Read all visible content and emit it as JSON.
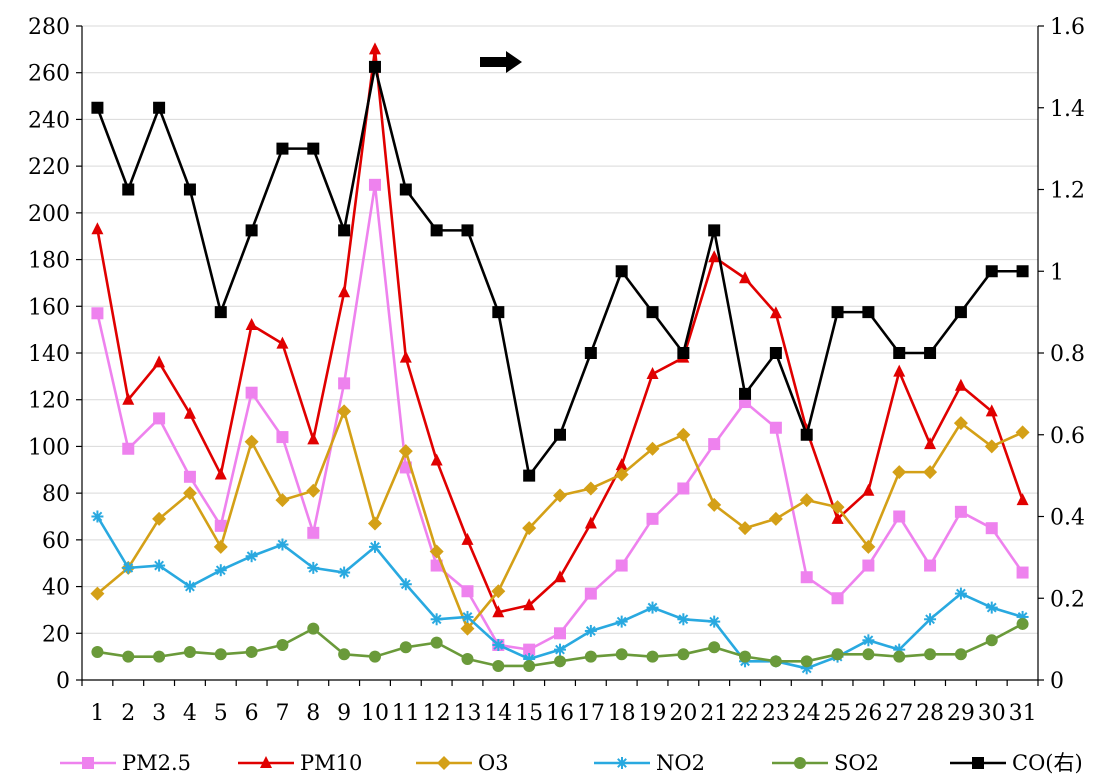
{
  "chart_data": {
    "type": "line",
    "x": [
      "1",
      "2",
      "3",
      "4",
      "5",
      "6",
      "7",
      "8",
      "9",
      "10",
      "11",
      "12",
      "13",
      "14",
      "15",
      "16",
      "17",
      "18",
      "19",
      "20",
      "21",
      "22",
      "23",
      "24",
      "25",
      "26",
      "27",
      "28",
      "29",
      "30",
      "31"
    ],
    "y_left": {
      "ticks": [
        "0",
        "20",
        "40",
        "60",
        "80",
        "100",
        "120",
        "140",
        "160",
        "180",
        "200",
        "220",
        "240",
        "260",
        "280"
      ],
      "ylim": [
        0,
        280
      ]
    },
    "y_right": {
      "ticks": [
        "0",
        "0.2",
        "0.4",
        "0.6",
        "0.8",
        "1",
        "1.2",
        "1.4",
        "1.6"
      ],
      "ylim": [
        0,
        1.6
      ]
    },
    "grid": true,
    "legend_position": "bottom",
    "annotation": "arrow-right",
    "series": [
      {
        "name": "PM2.5",
        "axis": "left",
        "color": "#ee82ee",
        "marker": "square",
        "values": [
          157,
          99,
          112,
          87,
          66,
          123,
          104,
          63,
          127,
          212,
          91,
          49,
          38,
          15,
          13,
          20,
          37,
          49,
          69,
          82,
          101,
          119,
          108,
          44,
          35,
          49,
          70,
          49,
          72,
          65,
          46
        ]
      },
      {
        "name": "PM10",
        "axis": "left",
        "color": "#e00000",
        "marker": "triangle",
        "values": [
          193,
          120,
          136,
          114,
          88,
          152,
          144,
          103,
          166,
          270,
          138,
          94,
          60,
          29,
          32,
          44,
          67,
          92,
          131,
          138,
          181,
          172,
          157,
          107,
          69,
          81,
          132,
          101,
          126,
          115,
          77
        ]
      },
      {
        "name": "O3",
        "axis": "left",
        "color": "#d4a017",
        "marker": "diamond",
        "values": [
          37,
          48,
          69,
          80,
          57,
          102,
          77,
          81,
          115,
          67,
          98,
          55,
          22,
          38,
          65,
          79,
          82,
          88,
          99,
          105,
          75,
          65,
          69,
          77,
          74,
          57,
          89,
          89,
          110,
          100,
          106
        ]
      },
      {
        "name": "NO2",
        "axis": "left",
        "color": "#29a9e0",
        "marker": "asterisk",
        "values": [
          70,
          48,
          49,
          40,
          47,
          53,
          58,
          48,
          46,
          57,
          41,
          26,
          27,
          15,
          9,
          13,
          21,
          25,
          31,
          26,
          25,
          8,
          8,
          5,
          10,
          17,
          13,
          26,
          37,
          31,
          27
        ]
      },
      {
        "name": "SO2",
        "axis": "left",
        "color": "#6a9a3a",
        "marker": "circle",
        "values": [
          12,
          10,
          10,
          12,
          11,
          12,
          15,
          22,
          11,
          10,
          14,
          16,
          9,
          6,
          6,
          8,
          10,
          11,
          10,
          11,
          14,
          10,
          8,
          8,
          11,
          11,
          10,
          11,
          11,
          17,
          24
        ]
      },
      {
        "name": "CO(右)",
        "axis": "right",
        "color": "#000000",
        "marker": "square",
        "values": [
          1.4,
          1.2,
          1.4,
          1.2,
          0.9,
          1.1,
          1.3,
          1.3,
          1.1,
          1.5,
          1.2,
          1.1,
          1.1,
          0.9,
          0.5,
          0.6,
          0.8,
          1.0,
          0.9,
          0.8,
          1.1,
          0.7,
          0.8,
          0.6,
          0.9,
          0.9,
          0.8,
          0.8,
          0.9,
          1.0,
          1.0
        ]
      }
    ]
  }
}
